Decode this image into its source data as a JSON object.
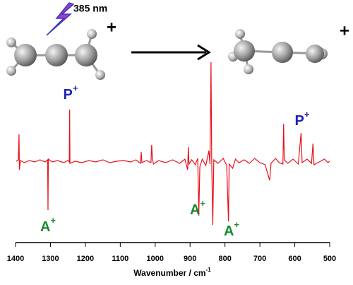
{
  "chart_data": {
    "type": "line",
    "x_label": "Wavenumber / cm",
    "x_label_sup": "-1",
    "xlim": [
      1400,
      500
    ],
    "xticks": [
      1400,
      1300,
      1200,
      1100,
      1000,
      900,
      800,
      700,
      600,
      500
    ],
    "ylim": [
      -115,
      140
    ],
    "series": [
      {
        "color": "#e8111b",
        "x": [
          1398,
          1392,
          1390,
          1389,
          1386,
          1375,
          1360,
          1345,
          1330,
          1315,
          1308,
          1307,
          1306,
          1295,
          1280,
          1262,
          1250,
          1246,
          1245,
          1244,
          1230,
          1210,
          1190,
          1170,
          1150,
          1130,
          1110,
          1090,
          1070,
          1055,
          1042,
          1040,
          1038,
          1025,
          1012,
          1010,
          1008,
          1005,
          990,
          970,
          950,
          930,
          915,
          907,
          905,
          903,
          895,
          885,
          878,
          875,
          872,
          865,
          855,
          846,
          843,
          840,
          838,
          835,
          832,
          820,
          805,
          795,
          790,
          788,
          778,
          770,
          760,
          745,
          730,
          715,
          700,
          685,
          672,
          668,
          655,
          645,
          634,
          632,
          630,
          620,
          605,
          590,
          582,
          579,
          565,
          552,
          548,
          545,
          530,
          515,
          505,
          500
        ],
        "values": [
          0,
          2,
          38,
          -12,
          1,
          -2,
          1,
          -1,
          2,
          -1,
          2,
          -69,
          3,
          -1,
          1,
          -2,
          1,
          -1,
          73,
          -3,
          0,
          -2,
          1,
          -1,
          2,
          -2,
          0,
          1,
          -1,
          2,
          -3,
          13,
          -2,
          1,
          -2,
          23,
          5,
          -4,
          1,
          -2,
          2,
          -3,
          3,
          -12,
          20,
          -4,
          2,
          -5,
          4,
          -77,
          -8,
          3,
          -6,
          15,
          -4,
          140,
          0,
          -90,
          2,
          -3,
          4,
          -6,
          -85,
          -4,
          -10,
          3,
          -2,
          2,
          -3,
          4,
          -2,
          -5,
          -27,
          -3,
          4,
          -2,
          -4,
          53,
          2,
          -3,
          3,
          -4,
          40,
          -2,
          3,
          -3,
          25,
          -5,
          -1,
          3,
          -2,
          0
        ]
      }
    ],
    "annotations": [
      {
        "text": "P",
        "sup": "+",
        "color": "#1b22b5"
      },
      {
        "text": "P",
        "sup": "+",
        "color": "#1b22b5"
      },
      {
        "text": "A",
        "sup": "+",
        "color": "#1a8a2e"
      },
      {
        "text": "A",
        "sup": "+",
        "color": "#1a8a2e"
      },
      {
        "text": "A",
        "sup": "+",
        "color": "#1a8a2e"
      }
    ]
  },
  "diagram": {
    "photon_label": "385 nm",
    "plus_left": "+",
    "plus_right": "+"
  }
}
